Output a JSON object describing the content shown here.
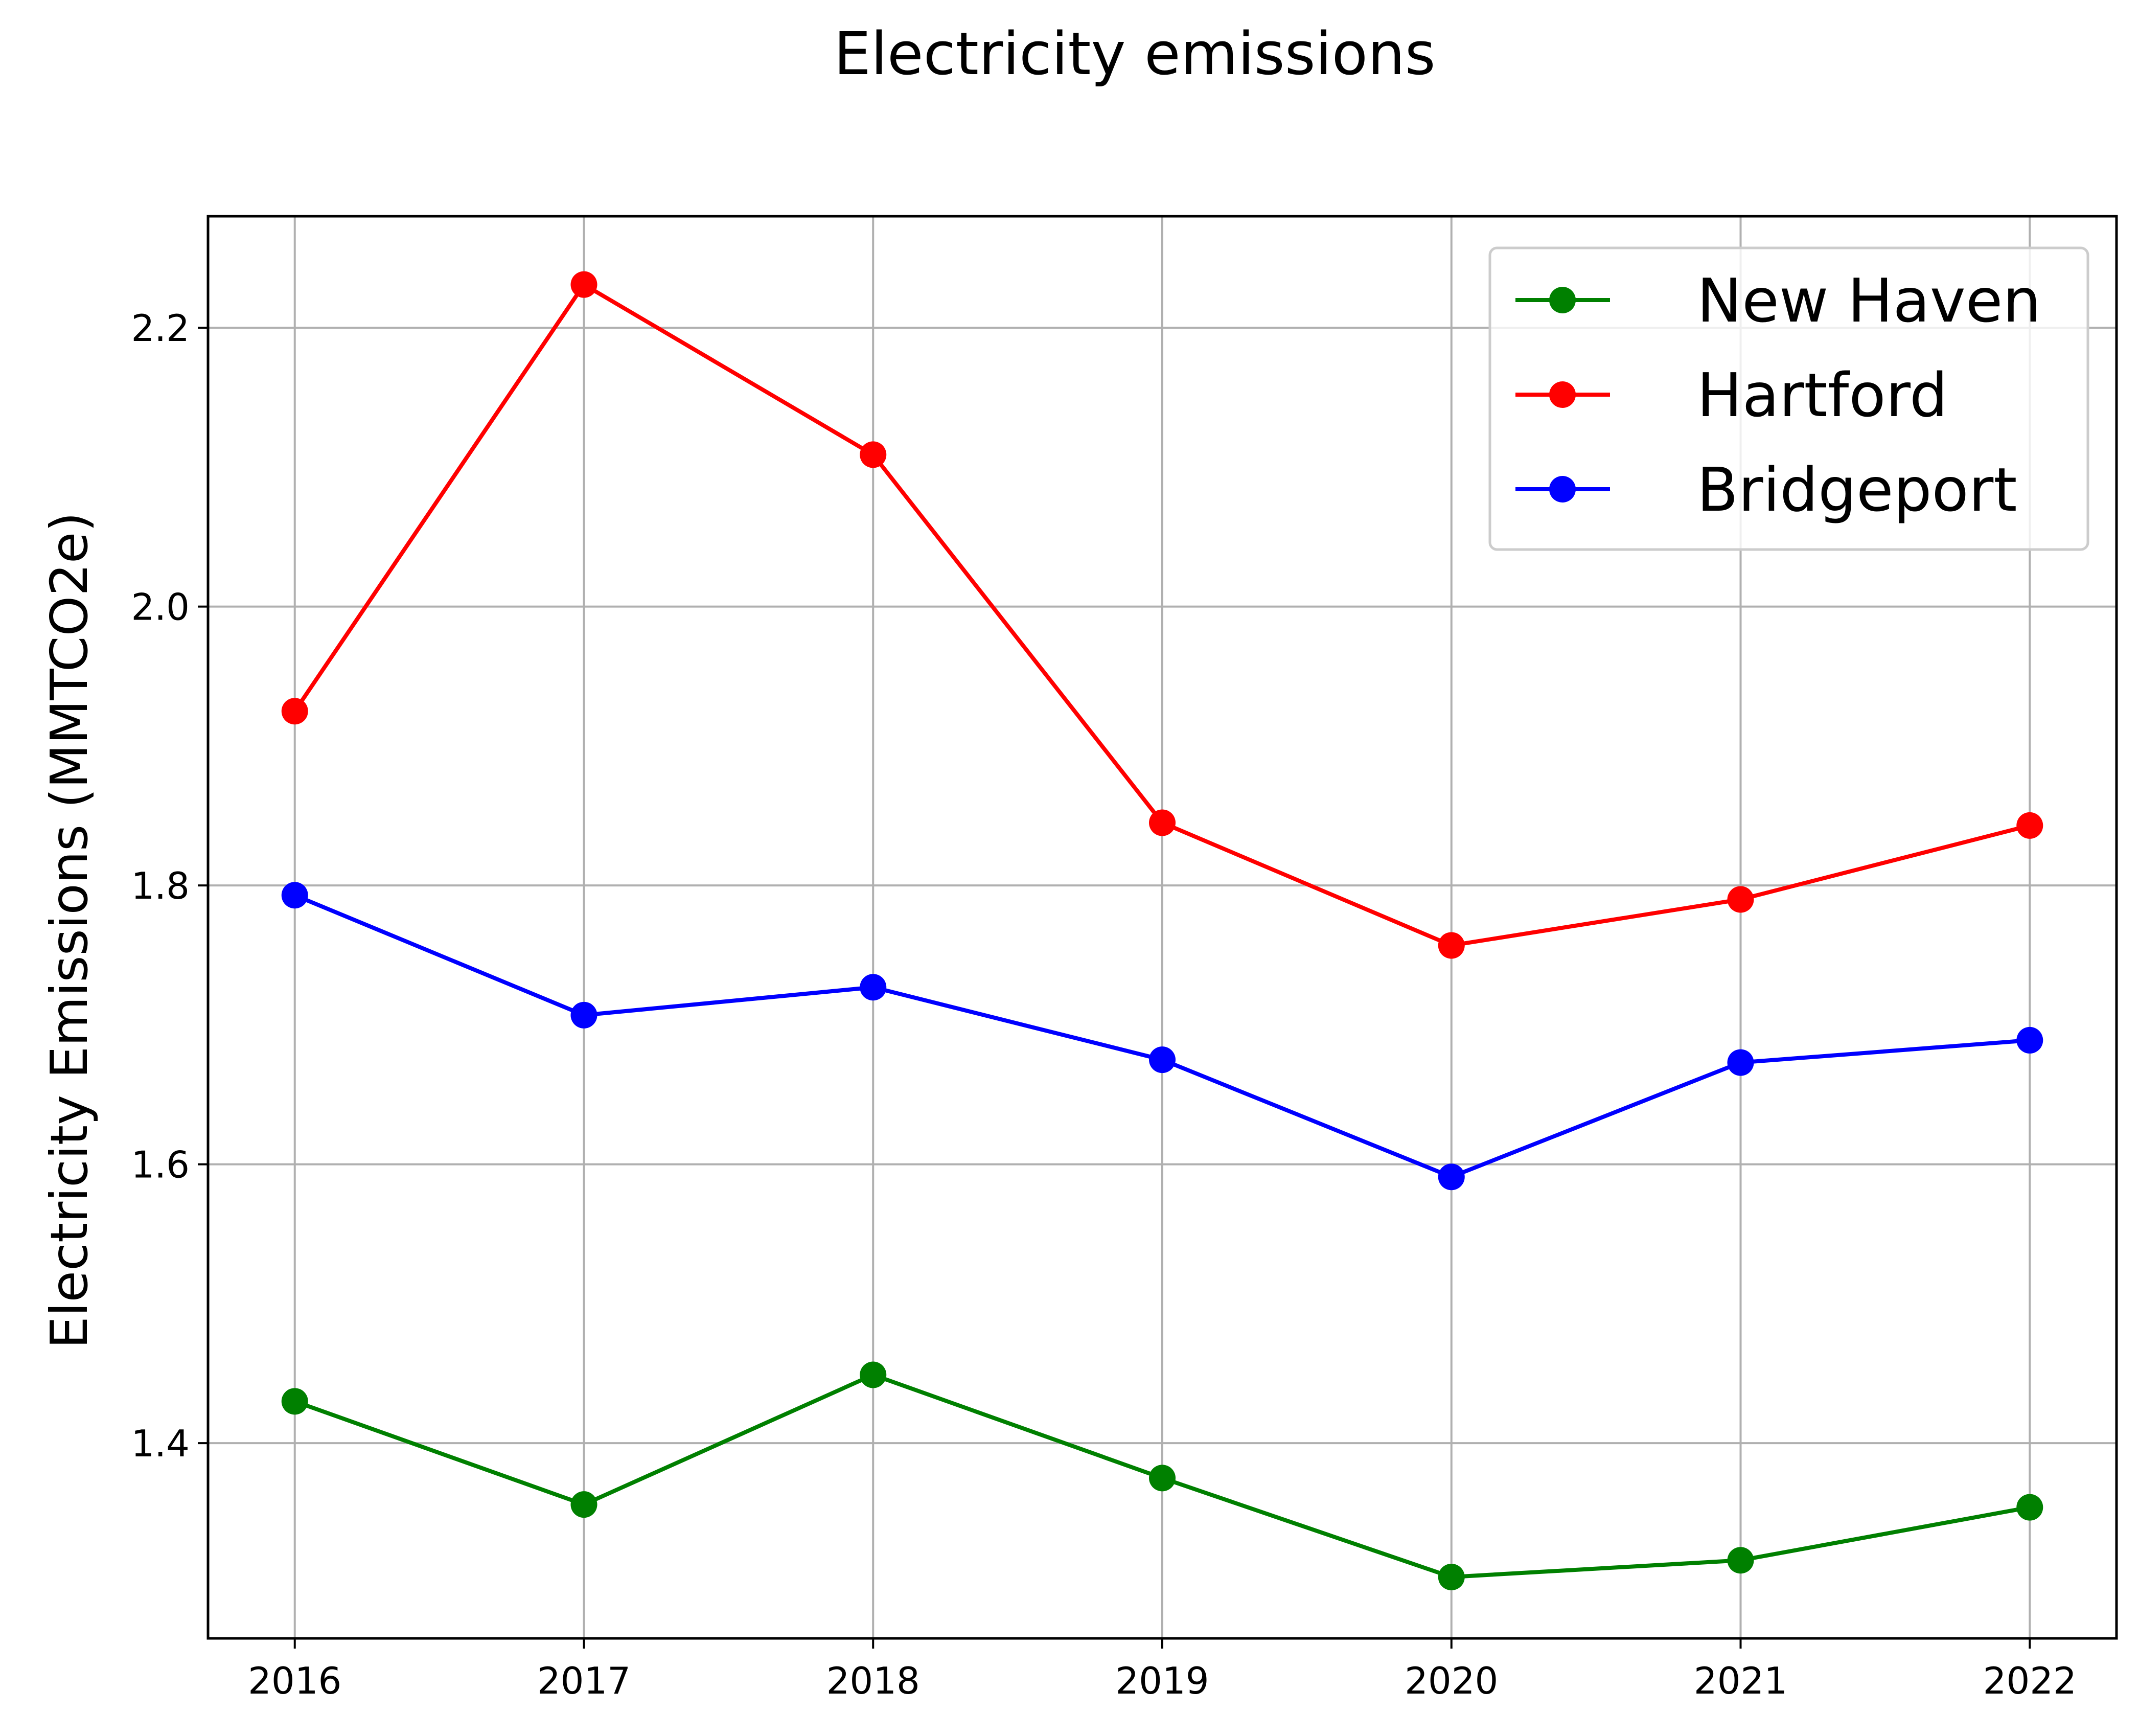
{
  "chart_data": {
    "type": "line",
    "title": "Electricity emissions",
    "xlabel": "",
    "ylabel": "Electricity Emissions (MMTCO2e)",
    "x": [
      2016,
      2017,
      2018,
      2019,
      2020,
      2021,
      2022
    ],
    "x_tick_labels": [
      "2016",
      "2017",
      "2018",
      "2019",
      "2020",
      "2021",
      "2022"
    ],
    "y_ticks": [
      1.4,
      1.6,
      1.8,
      2.0,
      2.2
    ],
    "y_tick_labels": [
      "1.4",
      "1.6",
      "1.8",
      "2.0",
      "2.2"
    ],
    "ylim": [
      1.26,
      2.28
    ],
    "xlim": [
      2015.7,
      2022.3
    ],
    "grid": true,
    "legend_position": "top-right",
    "series": [
      {
        "name": "New Haven",
        "color": "#008000",
        "marker": "circle",
        "values": [
          1.43,
          1.356,
          1.449,
          1.375,
          1.304,
          1.316,
          1.354
        ]
      },
      {
        "name": "Hartford",
        "color": "#ff0000",
        "marker": "circle",
        "values": [
          1.925,
          2.231,
          2.109,
          1.845,
          1.757,
          1.79,
          1.843
        ]
      },
      {
        "name": "Bridgeport",
        "color": "#0000ff",
        "marker": "circle",
        "values": [
          1.793,
          1.707,
          1.727,
          1.675,
          1.591,
          1.673,
          1.689
        ]
      }
    ]
  }
}
